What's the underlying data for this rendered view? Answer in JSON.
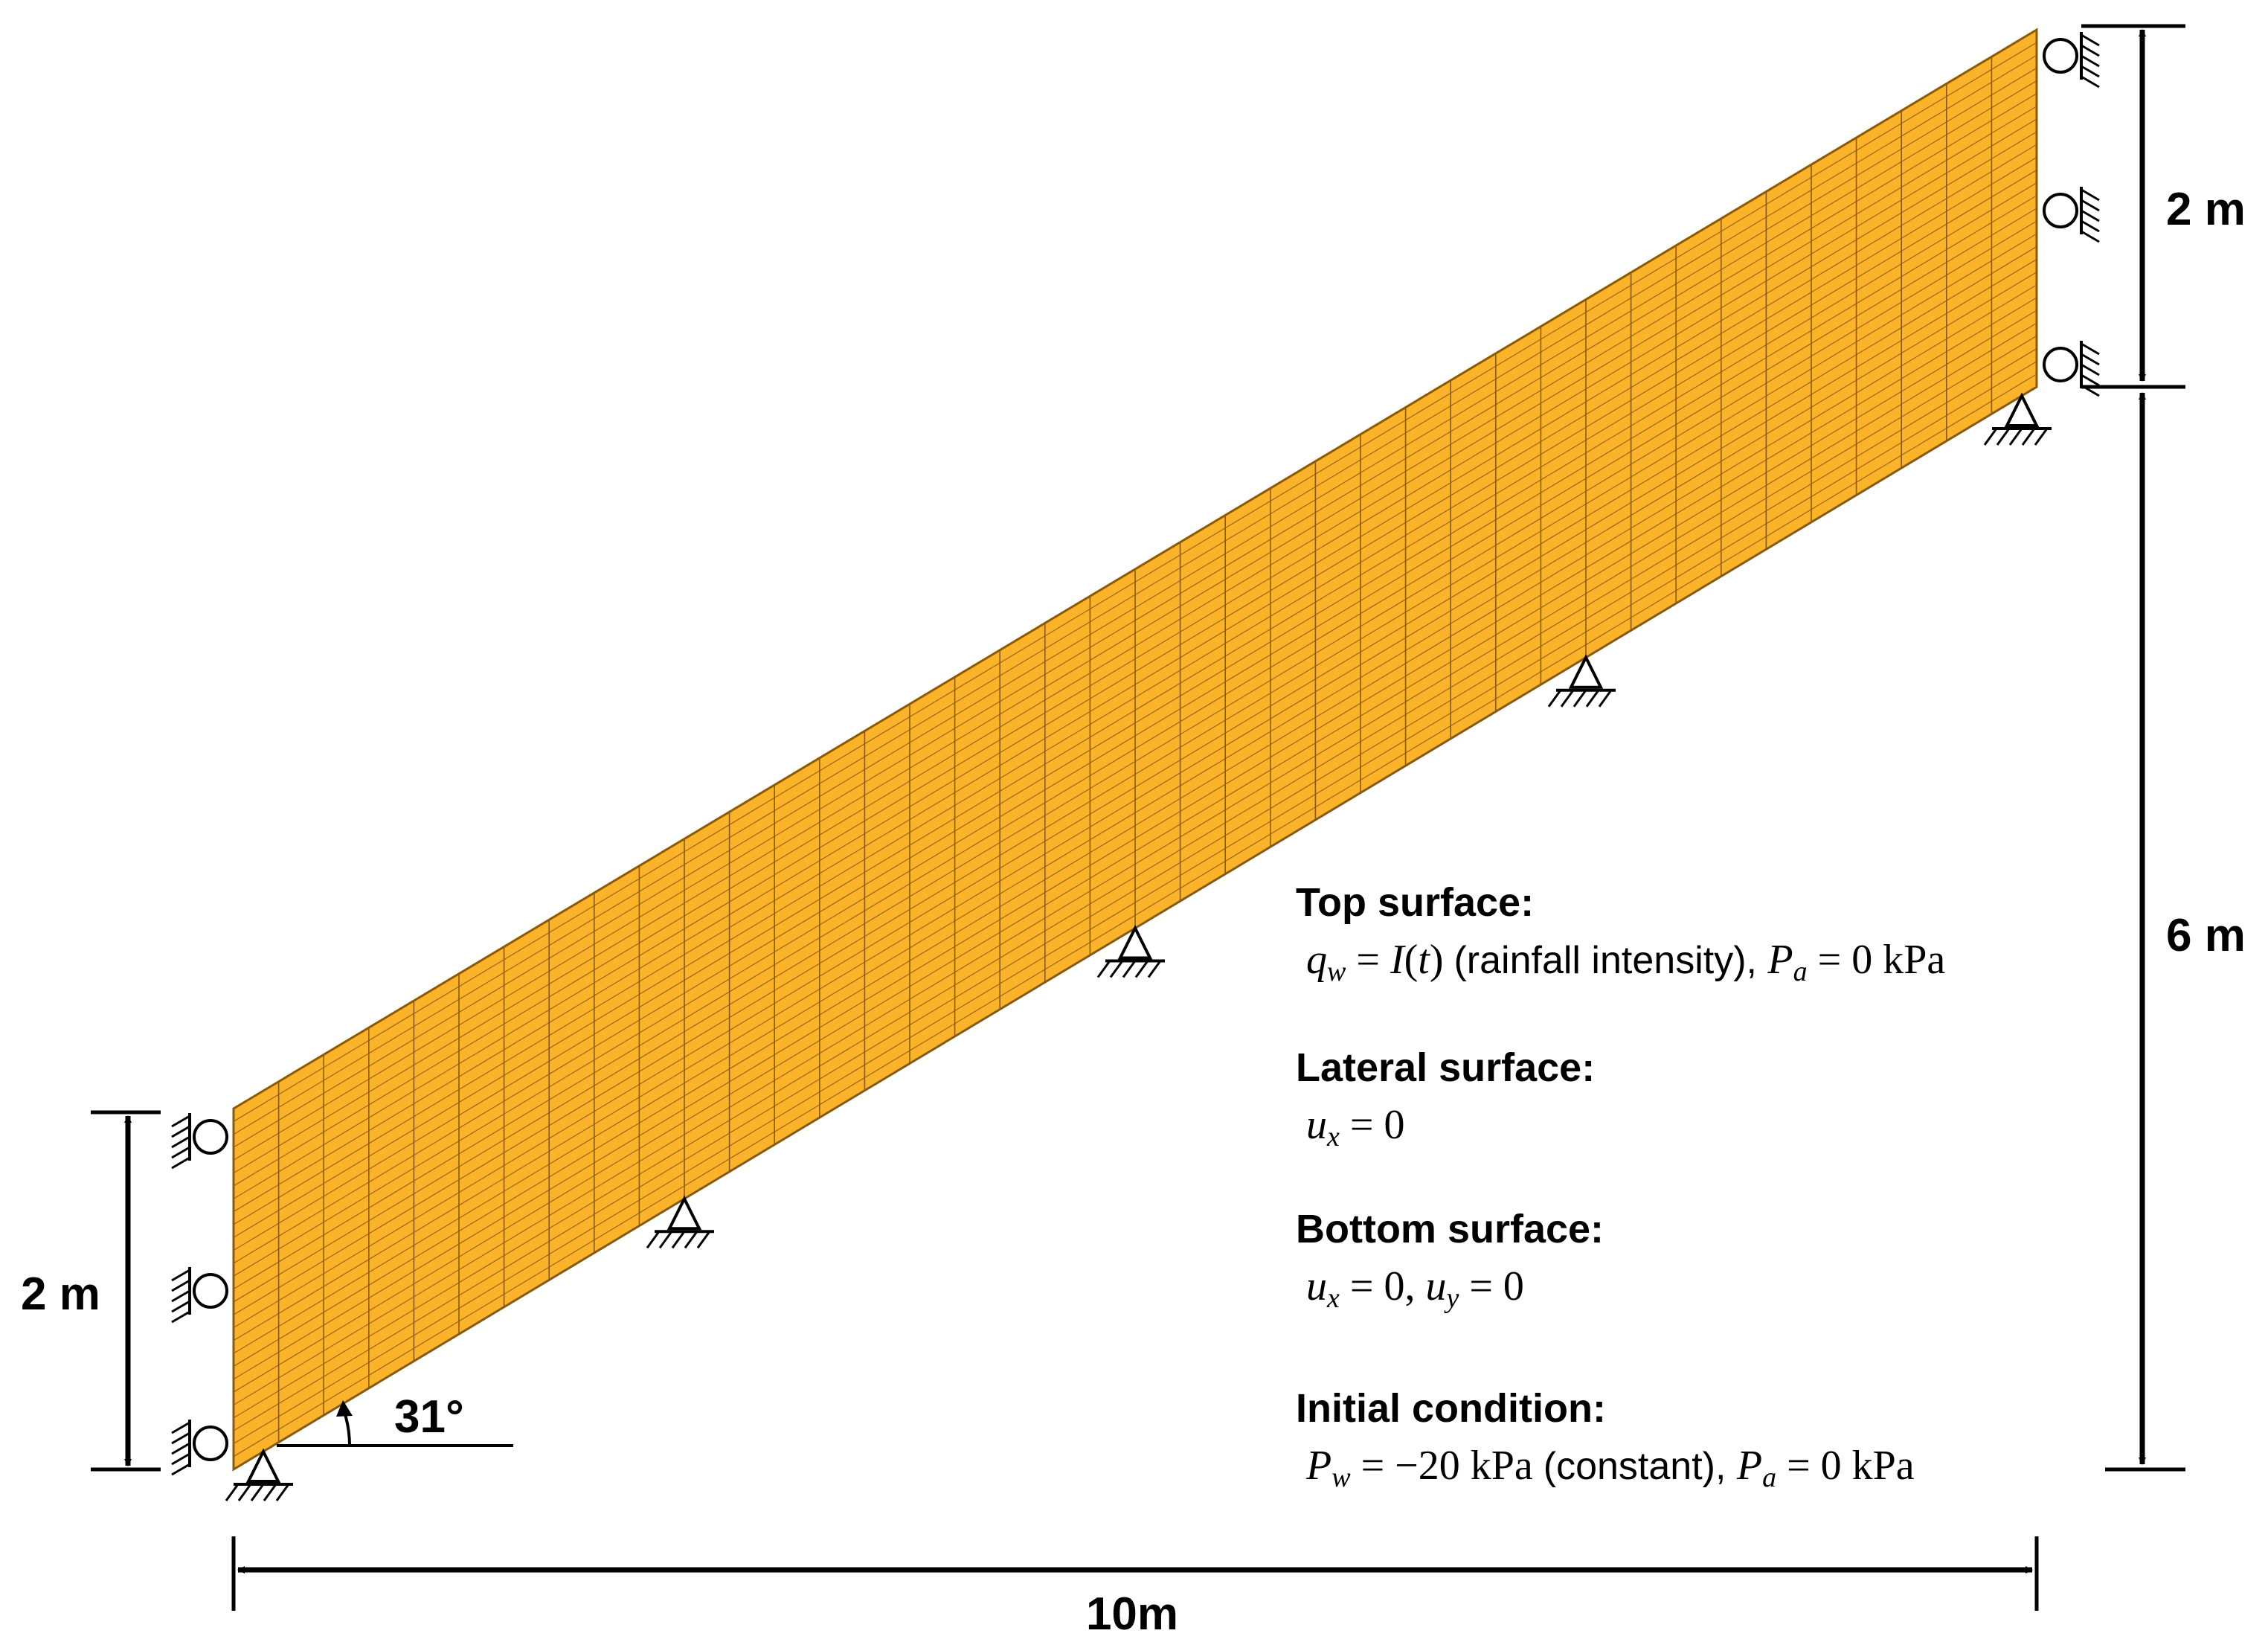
{
  "colors": {
    "mesh_fill": "#FBB32A",
    "mesh_line": "#8A5A0A",
    "ink": "#000000"
  },
  "mesh": {
    "columns": 40,
    "rows": 28,
    "slope_angle_deg": 31
  },
  "dimensions": {
    "left_height": "2 m",
    "right_top_height": "2 m",
    "right_height": "6 m",
    "width": "10m",
    "angle": "31°"
  },
  "boundary_conditions": [
    {
      "heading": "Top surface:",
      "equation": [
        {
          "t": "q",
          "i": true
        },
        {
          "t": "w",
          "sub": true
        },
        {
          "t": " = "
        },
        {
          "t": "I",
          "i": true
        },
        {
          "t": "("
        },
        {
          "t": "t",
          "i": true
        },
        {
          "t": ") "
        },
        {
          "t": "(rainfall intensity), ",
          "sans": true
        },
        {
          "t": "P",
          "i": true
        },
        {
          "t": "a",
          "sub": true
        },
        {
          "t": " = 0 kPa"
        }
      ],
      "equation_text": "q_w = I(t) (rainfall intensity), P_a = 0 kPa"
    },
    {
      "heading": "Lateral surface:",
      "equation": [
        {
          "t": "u",
          "i": true
        },
        {
          "t": "x",
          "sub": true
        },
        {
          "t": " = 0"
        }
      ],
      "equation_text": "u_x = 0"
    },
    {
      "heading": "Bottom surface:",
      "equation": [
        {
          "t": "u",
          "i": true
        },
        {
          "t": "x",
          "sub": true
        },
        {
          "t": " = 0, "
        },
        {
          "t": "u",
          "i": true
        },
        {
          "t": "y",
          "sub": true
        },
        {
          "t": " = 0"
        }
      ],
      "equation_text": "u_x = 0, u_y = 0"
    },
    {
      "heading": "Initial condition:",
      "equation": [
        {
          "t": "P",
          "i": true
        },
        {
          "t": "w",
          "sub": true
        },
        {
          "t": " = −20 kPa "
        },
        {
          "t": "(constant), ",
          "sans": true
        },
        {
          "t": "P",
          "i": true
        },
        {
          "t": "a",
          "sub": true
        },
        {
          "t": " = 0 kPa"
        }
      ],
      "equation_text": "P_w = −20 kPa (constant), P_a = 0 kPa"
    }
  ]
}
